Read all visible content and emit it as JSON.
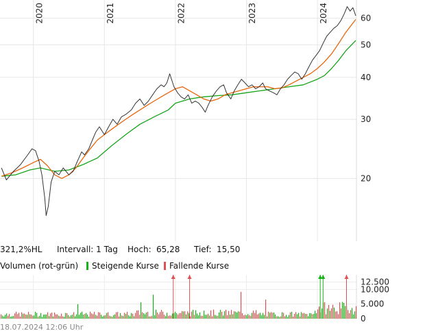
{
  "chart_data": [
    {
      "type": "line",
      "x_tick_labels": [
        "2020",
        "2021",
        "2022",
        "2023",
        "2024"
      ],
      "y_tick_labels": [
        "60",
        "50",
        "40",
        "30",
        "20"
      ],
      "y_ticks": [
        60,
        50,
        40,
        30,
        20
      ],
      "y_scale": "log",
      "ylim": [
        13,
        68
      ],
      "xlim": [
        2019.53,
        2024.55
      ],
      "grid": true,
      "series": [
        {
          "name": "",
          "color": "#333333",
          "x": [
            2019.55,
            2019.62,
            2019.72,
            2019.82,
            2019.92,
            2019.98,
            2020.03,
            2020.08,
            2020.12,
            2020.16,
            2020.18,
            2020.21,
            2020.25,
            2020.3,
            2020.36,
            2020.42,
            2020.5,
            2020.56,
            2020.62,
            2020.68,
            2020.72,
            2020.78,
            2020.83,
            2020.88,
            2020.93,
            2021.0,
            2021.06,
            2021.12,
            2021.18,
            2021.24,
            2021.3,
            2021.38,
            2021.44,
            2021.5,
            2021.56,
            2021.62,
            2021.68,
            2021.74,
            2021.8,
            2021.84,
            2021.88,
            2021.92,
            2021.98,
            2022.03,
            2022.08,
            2022.13,
            2022.18,
            2022.23,
            2022.28,
            2022.33,
            2022.38,
            2022.42,
            2022.46,
            2022.52,
            2022.58,
            2022.63,
            2022.68,
            2022.72,
            2022.78,
            2022.83,
            2022.88,
            2022.93,
            2022.98,
            2023.03,
            2023.08,
            2023.13,
            2023.18,
            2023.23,
            2023.27,
            2023.32,
            2023.38,
            2023.43,
            2023.48,
            2023.53,
            2023.58,
            2023.63,
            2023.68,
            2023.73,
            2023.78,
            2023.83,
            2023.88,
            2023.93,
            2023.98,
            2024.03,
            2024.08,
            2024.13,
            2024.18,
            2024.23,
            2024.28,
            2024.33,
            2024.38,
            2024.42,
            2024.46,
            2024.5,
            2024.54
          ],
          "y": [
            21.5,
            19.8,
            21.0,
            22.0,
            23.5,
            24.5,
            24.2,
            22.5,
            20.5,
            17.5,
            15.5,
            16.5,
            19.5,
            21.0,
            20.5,
            21.5,
            20.5,
            21.0,
            22.5,
            24.0,
            23.5,
            24.5,
            26.0,
            27.5,
            28.5,
            27.0,
            28.5,
            30.0,
            29.0,
            30.5,
            31.0,
            32.0,
            33.5,
            34.5,
            33.0,
            34.0,
            35.5,
            37.0,
            38.0,
            37.5,
            38.5,
            41.0,
            37.5,
            36.0,
            35.0,
            34.5,
            35.5,
            33.5,
            34.0,
            33.5,
            32.5,
            31.5,
            33.0,
            35.0,
            36.5,
            37.5,
            38.0,
            36.0,
            34.5,
            36.5,
            38.0,
            39.5,
            38.5,
            37.5,
            38.0,
            37.0,
            37.5,
            38.5,
            37.0,
            36.5,
            36.0,
            35.5,
            37.0,
            38.0,
            39.5,
            40.5,
            41.5,
            41.0,
            39.5,
            41.0,
            43.0,
            45.0,
            46.5,
            48.0,
            50.5,
            53.0,
            54.5,
            56.0,
            57.0,
            59.0,
            62.0,
            65.0,
            63.0,
            64.5,
            61.0
          ]
        },
        {
          "name": "",
          "color": "#e8650a",
          "x": [
            2019.55,
            2019.7,
            2019.85,
            2020.0,
            2020.1,
            2020.2,
            2020.3,
            2020.4,
            2020.5,
            2020.6,
            2020.7,
            2020.8,
            2020.9,
            2021.0,
            2021.1,
            2021.2,
            2021.3,
            2021.4,
            2021.5,
            2021.6,
            2021.7,
            2021.8,
            2021.9,
            2022.0,
            2022.1,
            2022.2,
            2022.3,
            2022.4,
            2022.5,
            2022.6,
            2022.7,
            2022.8,
            2022.9,
            2023.0,
            2023.1,
            2023.2,
            2023.3,
            2023.4,
            2023.5,
            2023.6,
            2023.7,
            2023.8,
            2023.9,
            2024.0,
            2024.1,
            2024.2,
            2024.3,
            2024.4,
            2024.54
          ],
          "y": [
            20.3,
            20.8,
            21.5,
            22.3,
            22.8,
            21.8,
            20.5,
            20.0,
            20.5,
            21.5,
            23.0,
            24.5,
            26.0,
            27.0,
            28.0,
            29.0,
            30.0,
            31.0,
            32.0,
            33.0,
            34.0,
            35.0,
            36.0,
            37.0,
            37.5,
            36.5,
            35.5,
            34.5,
            34.0,
            34.5,
            35.5,
            36.0,
            36.5,
            37.0,
            37.5,
            37.5,
            37.5,
            37.0,
            37.2,
            38.0,
            39.0,
            40.0,
            41.0,
            42.5,
            44.5,
            47.0,
            50.5,
            54.5,
            59.5
          ]
        },
        {
          "name": "",
          "color": "#16a516",
          "x": [
            2019.55,
            2019.75,
            2019.95,
            2020.1,
            2020.3,
            2020.5,
            2020.7,
            2020.9,
            2021.1,
            2021.3,
            2021.5,
            2021.7,
            2021.9,
            2022.0,
            2022.2,
            2022.4,
            2022.6,
            2022.8,
            2023.0,
            2023.2,
            2023.4,
            2023.6,
            2023.8,
            2024.0,
            2024.1,
            2024.2,
            2024.3,
            2024.4,
            2024.54
          ],
          "y": [
            20.3,
            20.5,
            21.2,
            21.5,
            21.0,
            21.2,
            22.0,
            23.0,
            25.0,
            27.0,
            29.0,
            30.5,
            32.0,
            33.5,
            34.5,
            35.0,
            35.3,
            35.5,
            36.0,
            36.5,
            37.0,
            37.5,
            38.0,
            39.5,
            40.5,
            42.5,
            45.0,
            48.0,
            51.5
          ]
        }
      ],
      "info": {
        "change": "321,2%HL",
        "interval_label": "Intervall: 1 Tag",
        "high_label": "Hoch:",
        "high_value": "65,28",
        "low_label": "Tief:",
        "low_value": "15,50"
      }
    },
    {
      "type": "bar",
      "title": "Volumen (rot-grün)",
      "legend": [
        {
          "label": "Steigende Kurse",
          "color": "#16b316"
        },
        {
          "label": "Fallende Kurse",
          "color": "#e05050"
        }
      ],
      "y_tick_labels": [
        "12.500",
        "10.000",
        "5.000",
        "0"
      ],
      "y_ticks": [
        12500,
        10000,
        5000,
        0
      ],
      "ylim": [
        0,
        15000
      ],
      "xlim": [
        2019.53,
        2024.55
      ],
      "footer": "18.07.2024 12:06 Uhr"
    }
  ]
}
